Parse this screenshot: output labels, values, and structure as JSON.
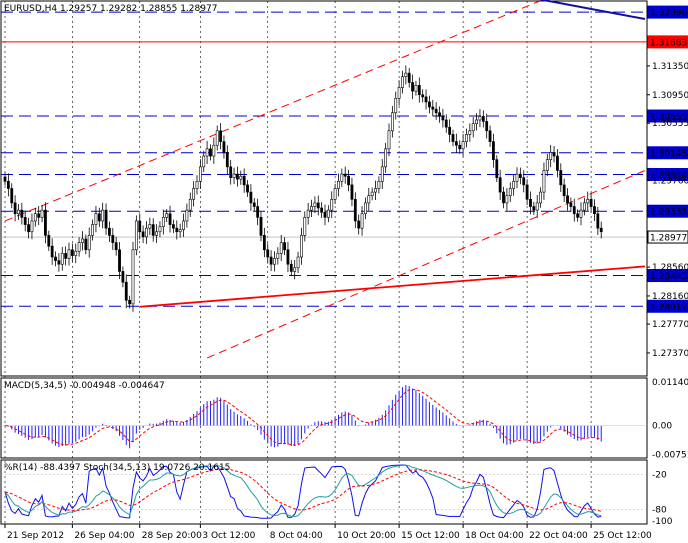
{
  "colors": {
    "background": "#ffffff",
    "border": "#000000",
    "grid": "#c8c8c8",
    "bull": "#000000",
    "bear": "#000000",
    "support_line": "#0000cc",
    "resistance_red": "#ff0000",
    "trend_blue": "#1010a0",
    "price_badge": "#ffffff",
    "macd_hist": "#2020ff",
    "macd_signal": "#ff0000",
    "wpr_line": "#1010ee",
    "stoch_main": "#20a0a0",
    "stoch_signal": "#ff0000"
  },
  "chart_data": {
    "type": "candlestick",
    "header": "EURUSD,H4  1.29257 1.29282 1.28855 1.28977",
    "symbol": "EURUSD",
    "timeframe": "H4",
    "ohlc_current": {
      "open": 1.29257,
      "high": 1.29282,
      "low": 1.28855,
      "close": 1.28977
    },
    "ylim": [
      1.2705,
      1.3225
    ],
    "y_ticks": [
      "1.32540",
      "1.31350",
      "1.30950",
      "1.30555",
      "1.29760",
      "1.28560",
      "1.28160",
      "1.27770",
      "1.27370"
    ],
    "y_tick_values": [
      1.3254,
      1.3135,
      1.3095,
      1.30555,
      1.2976,
      1.2856,
      1.2816,
      1.2777,
      1.2737
    ],
    "x_ticks": [
      "21 Sep 2012",
      "26 Sep 04:00",
      "28 Sep 20:00",
      "3 Oct 12:00",
      "8 Oct 04:00",
      "10 Oct 20:00",
      "15 Oct 12:00",
      "18 Oct 04:00",
      "22 Oct 04:00",
      "25 Oct 12:00"
    ],
    "x_tick_positions": [
      0,
      20,
      40,
      58,
      78,
      98,
      117,
      136,
      155,
      174
    ],
    "n_bars": 190,
    "horizontal_levels": [
      {
        "value": 1.32096,
        "label": "1.32096",
        "style": "dashed",
        "color": "#0000cc"
      },
      {
        "value": 1.31683,
        "label": "1.31683",
        "style": "solid",
        "color": "#ff0000"
      },
      {
        "value": 1.30655,
        "label": "1.30655",
        "style": "dashed",
        "color": "#0000cc"
      },
      {
        "value": 1.30145,
        "label": "1.30145",
        "style": "dashed",
        "color": "#0000cc"
      },
      {
        "value": 1.29844,
        "label": "1.29844",
        "style": "dashed",
        "color": "#0000cc"
      },
      {
        "value": 1.29335,
        "label": "1.29335",
        "style": "dashed",
        "color": "#0000cc"
      },
      {
        "value": 1.28977,
        "label": "1.28977",
        "style": "current",
        "color": "#000000"
      },
      {
        "value": 1.28443,
        "label": "1.28443",
        "style": "dashed",
        "color": "#0000cc"
      },
      {
        "value": 1.28017,
        "label": "1.28017",
        "style": "dashed",
        "color": "#0000cc"
      }
    ],
    "trendlines": [
      {
        "x1": 40,
        "y1": 1.2801,
        "x2": 190,
        "y2": 1.2857,
        "style": "solid",
        "color": "#ff0000"
      },
      {
        "x1": 0,
        "y1": 1.292,
        "x2": 190,
        "y2": 1.3285,
        "style": "dashed",
        "color": "#ff0000"
      },
      {
        "x1": 60,
        "y1": 1.273,
        "x2": 190,
        "y2": 1.299,
        "style": "dashed",
        "color": "#ff0000"
      },
      {
        "x1": 150,
        "y1": 1.3235,
        "x2": 190,
        "y2": 1.32,
        "style": "solid",
        "color": "#1010a0"
      }
    ],
    "closes": [
      1.2975,
      1.2965,
      1.2945,
      1.293,
      1.2935,
      1.2925,
      1.2915,
      1.2905,
      1.292,
      1.293,
      1.2925,
      1.2935,
      1.29,
      1.2885,
      1.287,
      1.2865,
      1.286,
      1.2875,
      1.2868,
      1.288,
      1.2872,
      1.2878,
      1.289,
      1.2895,
      1.288,
      1.29,
      1.2915,
      1.293,
      1.292,
      1.2935,
      1.291,
      1.29,
      1.289,
      1.288,
      1.285,
      1.2835,
      1.281,
      1.2805,
      1.288,
      1.292,
      1.2905,
      1.2898,
      1.291,
      1.2915,
      1.29,
      1.2905,
      1.2912,
      1.2925,
      1.293,
      1.2915,
      1.291,
      1.2905,
      1.2908,
      1.292,
      1.2935,
      1.295,
      1.2965,
      1.2975,
      1.2995,
      1.301,
      1.302,
      1.301,
      1.3025,
      1.3045,
      1.303,
      1.3015,
      1.2995,
      1.298,
      1.2985,
      1.2978,
      1.2982,
      1.297,
      1.296,
      1.2945,
      1.294,
      1.2925,
      1.29,
      1.288,
      1.287,
      1.286,
      1.2868,
      1.2875,
      1.289,
      1.288,
      1.286,
      1.285,
      1.2855,
      1.287,
      1.29,
      1.2925,
      1.2935,
      1.294,
      1.2945,
      1.2938,
      1.2932,
      1.2925,
      1.2935,
      1.295,
      1.2965,
      1.2975,
      1.2985,
      1.2982,
      1.297,
      1.295,
      1.292,
      1.291,
      1.293,
      1.2945,
      1.2955,
      1.296,
      1.2965,
      1.2975,
      1.2995,
      1.302,
      1.3045,
      1.307,
      1.309,
      1.3105,
      1.312,
      1.3125,
      1.3112,
      1.31,
      1.3108,
      1.3095,
      1.3092,
      1.3085,
      1.3078,
      1.3075,
      1.307,
      1.3065,
      1.306,
      1.305,
      1.304,
      1.303,
      1.3025,
      1.302,
      1.303,
      1.304,
      1.3045,
      1.3055,
      1.306,
      1.3065,
      1.3058,
      1.3045,
      1.303,
      1.3005,
      1.298,
      1.296,
      1.2945,
      1.2955,
      1.2965,
      1.2975,
      1.2985,
      1.298,
      1.297,
      1.295,
      1.294,
      1.2935,
      1.2945,
      1.296,
      1.299,
      1.3005,
      1.3015,
      1.301,
      1.299,
      1.297,
      1.2955,
      1.2945,
      1.294,
      1.293,
      1.2925,
      1.2935,
      1.2945,
      1.295,
      1.294,
      1.293,
      1.291,
      1.2905,
      1.292,
      1.2926,
      1.2898,
      1.2898,
      1.2898,
      1.2898,
      1.2898,
      1.2898,
      1.2898,
      1.2898,
      1.2898,
      1.2898
    ],
    "macd": {
      "header": "MACD(5,34,5) -0.004948 -0.004647",
      "ylim": [
        -0.0085,
        0.0125
      ],
      "y_ticks": [
        "0.011409",
        "0.00",
        "-0.007516"
      ],
      "y_tick_values": [
        0.011409,
        0.0,
        -0.007516
      ]
    },
    "oscillators": {
      "header": "%R(14) -88.4397  Stoch(34,5,13) 19.0726 20.1615",
      "ylim": [
        -105,
        5
      ],
      "y_ticks": [
        "-20",
        "-80",
        "-100"
      ],
      "y_tick_values": [
        -20,
        -80,
        -100
      ]
    }
  }
}
